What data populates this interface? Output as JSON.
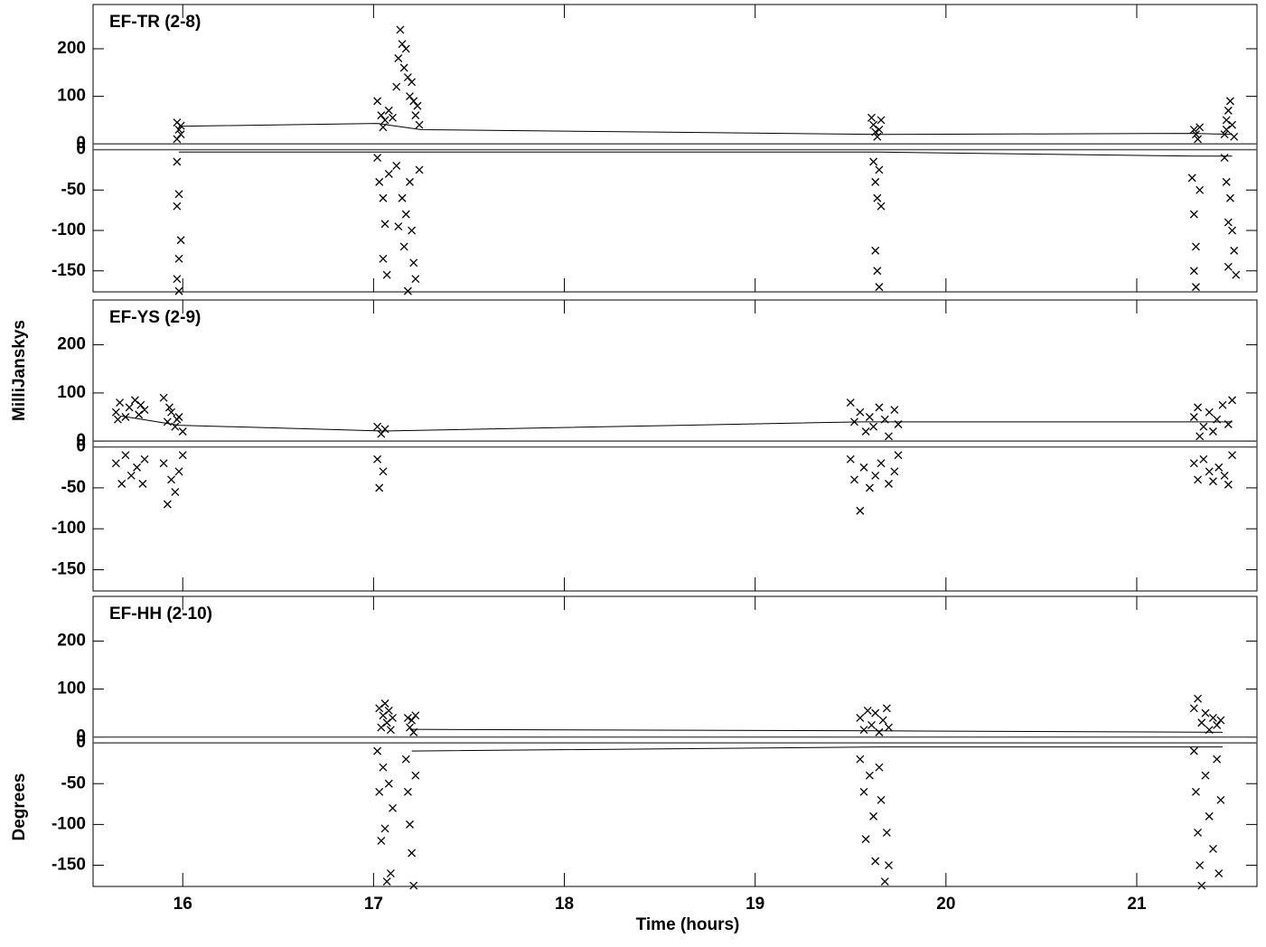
{
  "ylabel": "MilliJanskys",
  "y2label": "Degrees",
  "xlabel": "Time (hours)",
  "chart_data": [
    {
      "type": "scatter",
      "title": "EF-TR (2-8)",
      "marker": "x",
      "color": "#000000",
      "zero_lines": true,
      "xlim": [
        15.53,
        21.63
      ],
      "xticks": [
        16,
        17,
        18,
        19,
        20,
        21
      ],
      "ylim": [
        0,
        293
      ],
      "yticks": [
        0,
        100,
        200
      ],
      "y2lim": [
        -176,
        0
      ],
      "y2ticks": [
        0,
        -50,
        -100,
        -150
      ],
      "series": [
        {
          "style": "marker",
          "axis": "y",
          "x": [
            15.97,
            15.98,
            15.99,
            15.97,
            15.99,
            17.02,
            17.04,
            17.06,
            17.08,
            17.1,
            17.12,
            17.13,
            17.14,
            17.15,
            17.16,
            17.17,
            17.18,
            17.19,
            17.2,
            17.21,
            17.22,
            17.23,
            17.24,
            17.05,
            19.61,
            19.62,
            19.63,
            19.65,
            19.66,
            19.64,
            21.3,
            21.31,
            21.33,
            21.32,
            21.46,
            21.47,
            21.48,
            21.49,
            21.5,
            21.51,
            21.47
          ],
          "values": [
            45,
            30,
            20,
            10,
            38,
            90,
            60,
            50,
            70,
            55,
            120,
            180,
            240,
            210,
            160,
            200,
            140,
            100,
            130,
            90,
            60,
            80,
            40,
            35,
            55,
            40,
            25,
            30,
            50,
            15,
            30,
            20,
            35,
            10,
            20,
            50,
            70,
            90,
            40,
            15,
            30
          ]
        },
        {
          "style": "marker",
          "axis": "y2",
          "x": [
            15.97,
            15.98,
            15.97,
            15.99,
            15.98,
            15.97,
            15.98,
            17.02,
            17.03,
            17.05,
            17.06,
            17.08,
            17.05,
            17.07,
            17.12,
            17.13,
            17.15,
            17.16,
            17.17,
            17.18,
            17.19,
            17.2,
            17.21,
            17.22,
            17.24,
            19.62,
            19.63,
            19.64,
            19.65,
            19.66,
            19.63,
            19.64,
            19.65,
            21.29,
            21.3,
            21.31,
            21.3,
            21.31,
            21.33,
            21.46,
            21.47,
            21.48,
            21.49,
            21.5,
            21.51,
            21.48,
            21.52
          ],
          "values": [
            -15,
            -55,
            -70,
            -112,
            -135,
            -160,
            -175,
            -10,
            -40,
            -60,
            -92,
            -30,
            -135,
            -155,
            -20,
            -95,
            -60,
            -120,
            -80,
            -175,
            -40,
            -100,
            -140,
            -160,
            -25,
            -15,
            -40,
            -60,
            -25,
            -70,
            -125,
            -150,
            -170,
            -35,
            -80,
            -120,
            -150,
            -170,
            -50,
            -10,
            -40,
            -90,
            -60,
            -100,
            -125,
            -145,
            -155
          ]
        },
        {
          "style": "line",
          "axis": "y",
          "x": [
            15.98,
            17.02,
            17.25,
            19.65,
            21.3,
            21.5
          ],
          "values": [
            37,
            43,
            30,
            20,
            22,
            20
          ]
        },
        {
          "style": "line",
          "axis": "y2",
          "x": [
            15.98,
            17.02,
            19.65,
            21.3,
            21.5
          ],
          "values": [
            -3,
            -3,
            -3,
            -8,
            -8
          ]
        }
      ]
    },
    {
      "type": "scatter",
      "title": "EF-YS (2-9)",
      "marker": "x",
      "color": "#000000",
      "zero_lines": true,
      "xlim": [
        15.53,
        21.63
      ],
      "xticks": [
        16,
        17,
        18,
        19,
        20,
        21
      ],
      "ylim": [
        0,
        293
      ],
      "yticks": [
        0,
        100,
        200
      ],
      "y2lim": [
        -176,
        0
      ],
      "y2ticks": [
        0,
        -50,
        -100,
        -150
      ],
      "series": [
        {
          "style": "marker",
          "axis": "y",
          "x": [
            15.65,
            15.67,
            15.7,
            15.72,
            15.75,
            15.77,
            15.8,
            15.66,
            15.78,
            15.9,
            15.92,
            15.94,
            15.96,
            15.98,
            16.0,
            15.93,
            15.97,
            17.02,
            17.04,
            17.06,
            19.5,
            19.52,
            19.55,
            19.58,
            19.6,
            19.62,
            19.65,
            19.68,
            19.7,
            19.73,
            19.75,
            21.3,
            21.32,
            21.35,
            21.38,
            21.4,
            21.42,
            21.45,
            21.48,
            21.5,
            21.33
          ],
          "values": [
            60,
            80,
            50,
            70,
            85,
            55,
            65,
            45,
            75,
            90,
            40,
            60,
            30,
            50,
            20,
            70,
            45,
            30,
            15,
            25,
            80,
            40,
            60,
            20,
            50,
            30,
            70,
            45,
            10,
            65,
            35,
            50,
            70,
            30,
            60,
            20,
            45,
            75,
            35,
            85,
            10
          ]
        },
        {
          "style": "marker",
          "axis": "y2",
          "x": [
            15.65,
            15.68,
            15.7,
            15.73,
            15.76,
            15.79,
            15.8,
            15.9,
            15.92,
            15.94,
            15.96,
            15.98,
            16.0,
            17.02,
            17.03,
            17.05,
            19.5,
            19.52,
            19.55,
            19.57,
            19.6,
            19.63,
            19.66,
            19.7,
            19.73,
            19.75,
            21.3,
            21.32,
            21.35,
            21.38,
            21.4,
            21.43,
            21.46,
            21.48,
            21.5
          ],
          "values": [
            -20,
            -45,
            -10,
            -35,
            -25,
            -45,
            -15,
            -20,
            -70,
            -40,
            -55,
            -30,
            -10,
            -15,
            -50,
            -30,
            -15,
            -40,
            -78,
            -25,
            -50,
            -35,
            -20,
            -45,
            -30,
            -10,
            -20,
            -40,
            -15,
            -30,
            -42,
            -25,
            -35,
            -46,
            -10
          ]
        },
        {
          "style": "line",
          "axis": "y",
          "x": [
            15.68,
            15.98,
            17.05,
            19.55,
            21.5
          ],
          "values": [
            52,
            33,
            21,
            40,
            40
          ]
        }
      ]
    },
    {
      "type": "scatter",
      "title": "EF-HH (2-10)",
      "marker": "x",
      "color": "#000000",
      "zero_lines": true,
      "xlim": [
        15.53,
        21.63
      ],
      "xticks": [
        16,
        17,
        18,
        19,
        20,
        21
      ],
      "ylim": [
        0,
        293
      ],
      "yticks": [
        0,
        100,
        200
      ],
      "y2lim": [
        -176,
        0
      ],
      "y2ticks": [
        0,
        -50,
        -100,
        -150
      ],
      "series": [
        {
          "style": "marker",
          "axis": "y",
          "x": [
            17.03,
            17.04,
            17.05,
            17.06,
            17.07,
            17.08,
            17.09,
            17.1,
            17.18,
            17.19,
            17.2,
            17.21,
            17.22,
            19.55,
            19.57,
            19.59,
            19.61,
            19.63,
            19.65,
            19.67,
            19.69,
            19.7,
            21.3,
            21.32,
            21.34,
            21.36,
            21.38,
            21.4,
            21.42,
            21.44
          ],
          "values": [
            60,
            20,
            45,
            70,
            30,
            55,
            15,
            40,
            40,
            20,
            35,
            10,
            45,
            40,
            15,
            55,
            25,
            50,
            10,
            35,
            60,
            20,
            60,
            80,
            30,
            50,
            15,
            40,
            25,
            35
          ]
        },
        {
          "style": "marker",
          "axis": "y2",
          "x": [
            17.02,
            17.03,
            17.04,
            17.05,
            17.06,
            17.07,
            17.08,
            17.09,
            17.1,
            17.17,
            17.18,
            17.19,
            17.2,
            17.21,
            17.22,
            19.55,
            19.57,
            19.58,
            19.6,
            19.62,
            19.63,
            19.65,
            19.66,
            19.68,
            19.69,
            19.7,
            21.3,
            21.31,
            21.32,
            21.33,
            21.34,
            21.36,
            21.38,
            21.4,
            21.42,
            21.43,
            21.44
          ],
          "values": [
            -10,
            -60,
            -120,
            -30,
            -105,
            -170,
            -50,
            -160,
            -80,
            -20,
            -60,
            -100,
            -135,
            -175,
            -40,
            -20,
            -60,
            -118,
            -40,
            -90,
            -145,
            -30,
            -70,
            -170,
            -110,
            -150,
            -10,
            -60,
            -110,
            -150,
            -175,
            -40,
            -90,
            -130,
            -20,
            -160,
            -70
          ]
        },
        {
          "style": "line",
          "axis": "y",
          "x": [
            17.2,
            19.65,
            21.45
          ],
          "values": [
            16,
            13,
            10
          ]
        },
        {
          "style": "line",
          "axis": "y2",
          "x": [
            17.2,
            19.65,
            21.45
          ],
          "values": [
            -10,
            -5,
            -5
          ]
        }
      ]
    }
  ]
}
